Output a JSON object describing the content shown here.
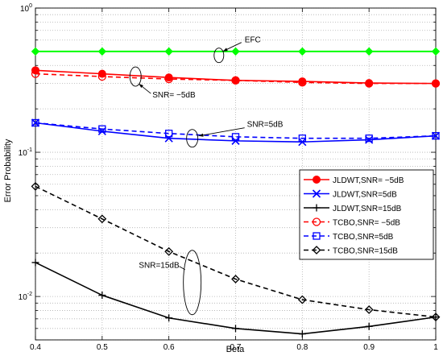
{
  "chart_data": {
    "type": "line",
    "xlabel": "Beta",
    "ylabel": "Error Probability",
    "xlim": [
      0.4,
      1.0
    ],
    "ylim": [
      0.005,
      1.0
    ],
    "yscale": "log",
    "grid": true,
    "legend_position": "lower-right",
    "x_ticks": [
      "0.4",
      "0.5",
      "0.6",
      "0.7",
      "0.8",
      "0.9",
      "1"
    ],
    "y_ticks": [
      {
        "value": 1,
        "base": "10",
        "exp": "0"
      },
      {
        "value": 0.1,
        "base": "10",
        "exp": "-1"
      },
      {
        "value": 0.01,
        "base": "10",
        "exp": "-2"
      }
    ],
    "series": [
      {
        "name": "JLDWT,SNR= −5dB",
        "color": "#ff0000",
        "dash": "solid",
        "marker": "circle",
        "x": [
          0.4,
          0.5,
          0.6,
          0.7,
          0.8,
          0.9,
          1.0
        ],
        "y": [
          0.37,
          0.35,
          0.33,
          0.315,
          0.31,
          0.302,
          0.3
        ]
      },
      {
        "name": "JLDWT,SNR=5dB",
        "color": "#0000ff",
        "dash": "solid",
        "marker": "x",
        "x": [
          0.4,
          0.5,
          0.6,
          0.7,
          0.8,
          0.9,
          1.0
        ],
        "y": [
          0.16,
          0.14,
          0.125,
          0.12,
          0.118,
          0.122,
          0.13
        ]
      },
      {
        "name": "JLDWT,SNR=15dB",
        "color": "#000000",
        "dash": "solid",
        "marker": "plus",
        "x": [
          0.4,
          0.5,
          0.6,
          0.7,
          0.8,
          0.9,
          1.0
        ],
        "y": [
          0.0172,
          0.0102,
          0.0071,
          0.006,
          0.0055,
          0.0062,
          0.0072
        ]
      },
      {
        "name": "TCBO,SNR= −5dB",
        "color": "#ff0000",
        "dash": "dashed",
        "marker": "circle-open",
        "x": [
          0.4,
          0.5,
          0.6,
          0.7,
          0.8,
          0.9,
          1.0
        ],
        "y": [
          0.35,
          0.335,
          0.322,
          0.315,
          0.305,
          0.3,
          0.3
        ]
      },
      {
        "name": "TCBO,SNR=5dB",
        "color": "#0000ff",
        "dash": "dashed",
        "marker": "square-open",
        "x": [
          0.4,
          0.5,
          0.6,
          0.7,
          0.8,
          0.9,
          1.0
        ],
        "y": [
          0.16,
          0.145,
          0.135,
          0.128,
          0.125,
          0.125,
          0.13
        ]
      },
      {
        "name": "TCBO,SNR=15dB",
        "color": "#000000",
        "dash": "dashed",
        "marker": "diamond-open",
        "x": [
          0.4,
          0.5,
          0.6,
          0.7,
          0.8,
          0.9,
          1.0
        ],
        "y": [
          0.058,
          0.0345,
          0.0205,
          0.0132,
          0.0095,
          0.0081,
          0.0072
        ]
      },
      {
        "name": "",
        "color": "#00ff00",
        "dash": "solid",
        "marker": "diamond-filled",
        "x": [
          0.4,
          0.5,
          0.6,
          0.7,
          0.8,
          0.9,
          1.0
        ],
        "y": [
          0.5,
          0.5,
          0.5,
          0.5,
          0.5,
          0.5,
          0.5
        ]
      }
    ],
    "annotations": [
      {
        "text": "EFC",
        "target_x": 0.675,
        "target_y": 0.47
      },
      {
        "text": "SNR= −5dB",
        "target_x": 0.55,
        "target_y": 0.335
      },
      {
        "text": "SNR=5dB",
        "target_x": 0.635,
        "target_y": 0.125
      },
      {
        "text": "SNR=15dB",
        "target_x": 0.635,
        "target_y": 0.0125
      }
    ]
  }
}
